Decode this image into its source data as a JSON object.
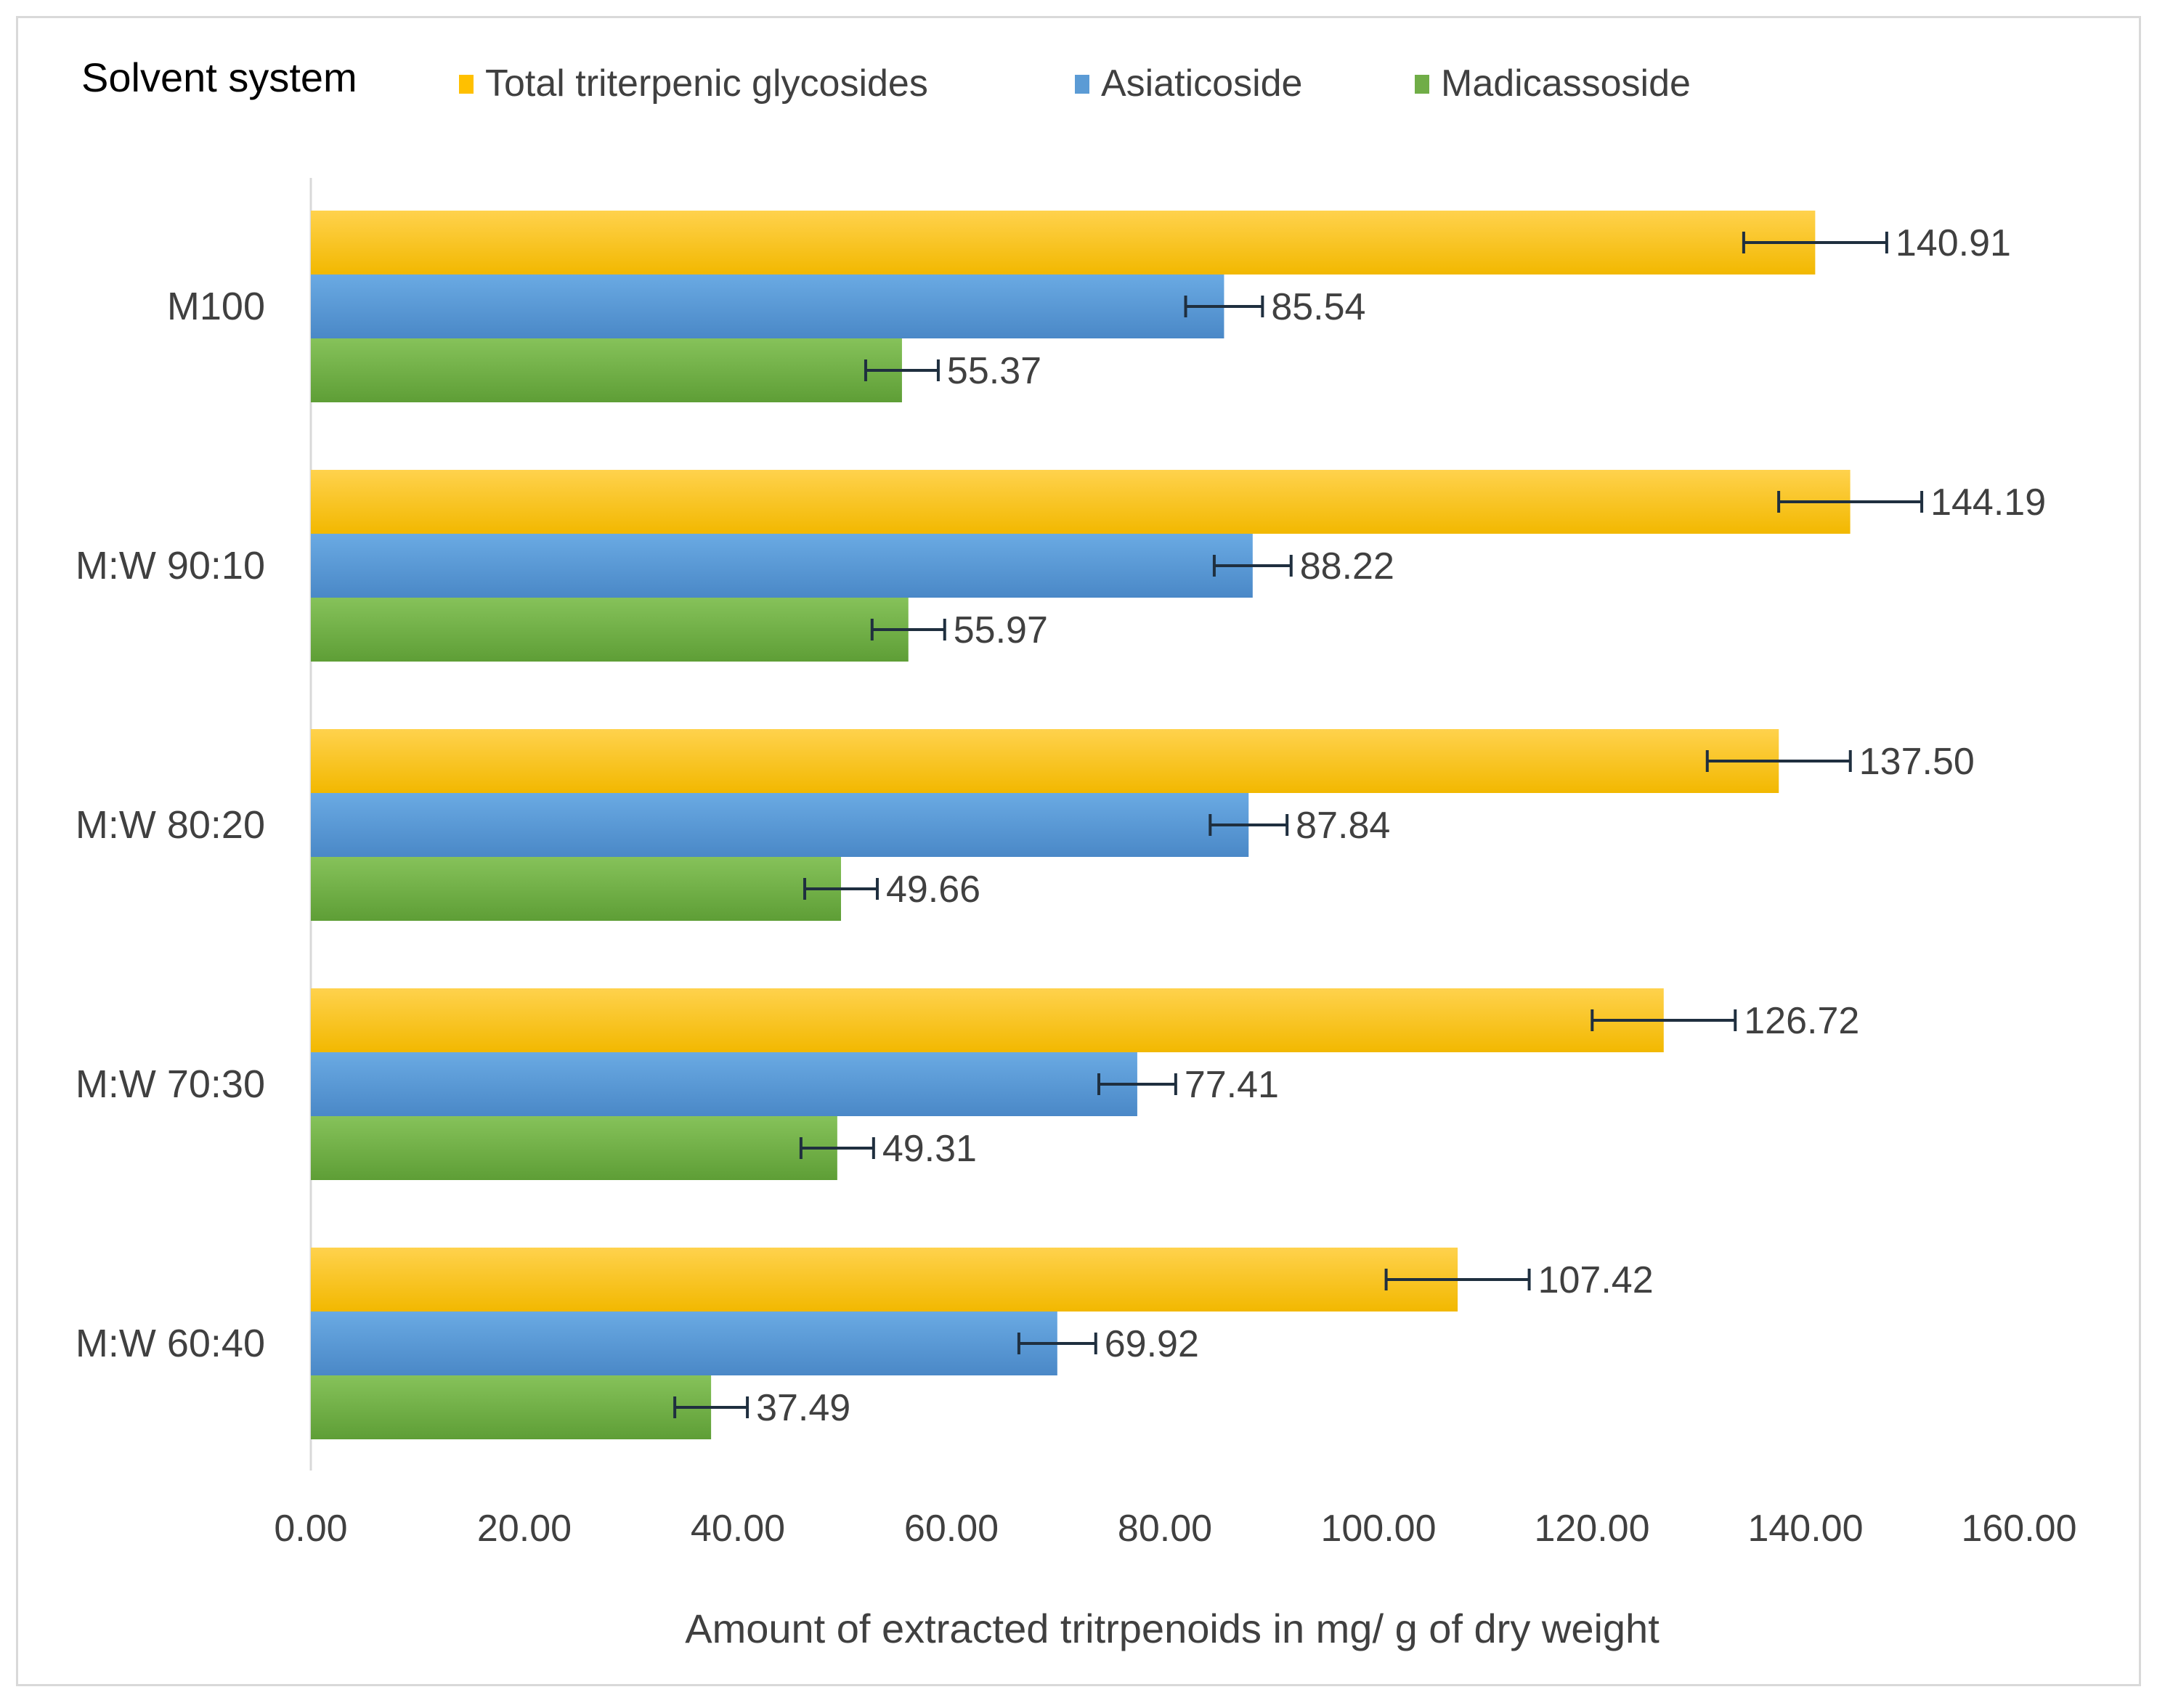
{
  "chart_data": {
    "type": "bar",
    "orientation": "horizontal",
    "title": "",
    "legend_title": "Solvent system",
    "legend_position": "top",
    "xlabel": "Amount of extracted tritrpenoids in mg/ g of dry weight",
    "ylabel": "",
    "xlim": [
      0,
      160
    ],
    "x_ticks": [
      "0.00",
      "20.00",
      "40.00",
      "60.00",
      "80.00",
      "100.00",
      "120.00",
      "140.00",
      "160.00"
    ],
    "grid": false,
    "categories": [
      "M100",
      "M:W 90:10",
      "M:W 80:20",
      "M:W 70:30",
      "M:W 60:40"
    ],
    "series": [
      {
        "name": "Total triterpenic glycosides",
        "color": "#ffc000",
        "values": [
          140.91,
          144.19,
          137.5,
          126.72,
          107.42
        ],
        "labels": [
          "140.91",
          "144.19",
          "137.50",
          "126.72",
          "107.42"
        ],
        "errors": [
          6.7,
          6.7,
          6.7,
          6.7,
          6.7
        ]
      },
      {
        "name": "Asiaticoside",
        "color": "#5b9bd5",
        "values": [
          85.54,
          88.22,
          87.84,
          77.41,
          69.92
        ],
        "labels": [
          "85.54",
          "88.22",
          "87.84",
          "77.41",
          "69.92"
        ],
        "errors": [
          3.6,
          3.6,
          3.6,
          3.6,
          3.6
        ]
      },
      {
        "name": "Madicassoside",
        "color": "#70ad47",
        "values": [
          55.37,
          55.97,
          49.66,
          49.31,
          37.49
        ],
        "labels": [
          "55.37",
          "55.97",
          "49.66",
          "49.31",
          "37.49"
        ],
        "errors": [
          3.4,
          3.4,
          3.4,
          3.4,
          3.4
        ]
      }
    ]
  },
  "colors": {
    "text": "#404040",
    "axis": "#d9d9d9",
    "error_bar": "#1f2f3f"
  }
}
